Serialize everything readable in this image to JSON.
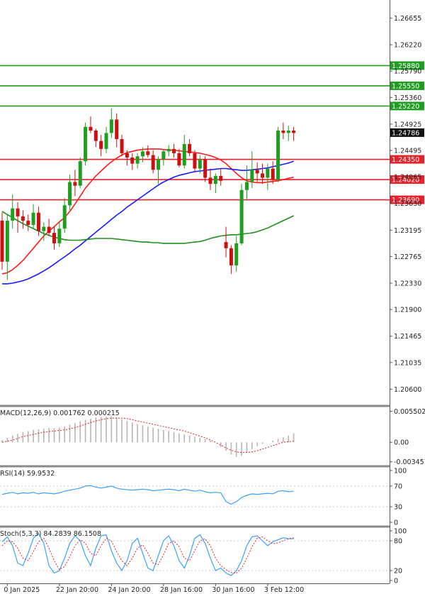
{
  "chart_data": {
    "type": "candlestick",
    "price_axis": {
      "range": [
        1.2035,
        1.2695
      ],
      "ticks": [
        "1.26655",
        "1.26220",
        "1.25790",
        "1.25360",
        "1.24925",
        "1.24495",
        "1.24065",
        "1.23630",
        "1.23195",
        "1.22765",
        "1.22330",
        "1.21900",
        "1.21465",
        "1.21035",
        "1.20600"
      ]
    },
    "current_price": "1.24786",
    "levels": [
      {
        "label": "1.25880",
        "value": 1.2588,
        "color": "#1f9e1f"
      },
      {
        "label": "1.25550",
        "value": 1.2555,
        "color": "#1f9e1f"
      },
      {
        "label": "1.25220",
        "value": 1.2522,
        "color": "#1f9e1f"
      },
      {
        "label": "1.24350",
        "value": 1.2435,
        "color": "#e8202a"
      },
      {
        "label": "1.24020",
        "value": 1.2402,
        "color": "#e8202a"
      },
      {
        "label": "1.23690",
        "value": 1.2369,
        "color": "#e8202a"
      }
    ],
    "x_labels": [
      {
        "label": "0 Jan 2025",
        "i": 1
      },
      {
        "label": "22 Jan 20:00",
        "i": 11
      },
      {
        "label": "24 Jan 20:00",
        "i": 21
      },
      {
        "label": "28 Jan 16:00",
        "i": 31
      },
      {
        "label": "30 Jan 16:00",
        "i": 41
      },
      {
        "label": "3 Feb 12:00",
        "i": 51
      }
    ],
    "candles": [
      [
        1.2335,
        1.2348,
        1.2255,
        1.2268
      ],
      [
        1.2268,
        1.2345,
        1.2238,
        1.2335
      ],
      [
        1.2335,
        1.2378,
        1.2322,
        1.2355
      ],
      [
        1.2355,
        1.2365,
        1.2315,
        1.2342
      ],
      [
        1.2342,
        1.2352,
        1.2322,
        1.2335
      ],
      [
        1.2335,
        1.2345,
        1.2318,
        1.2328
      ],
      [
        1.2328,
        1.2362,
        1.2322,
        1.2348
      ],
      [
        1.2348,
        1.2358,
        1.231,
        1.2318
      ],
      [
        1.2318,
        1.2332,
        1.2302,
        1.2325
      ],
      [
        1.2325,
        1.2338,
        1.231,
        1.2315
      ],
      [
        1.2315,
        1.2325,
        1.2288,
        1.2298
      ],
      [
        1.2298,
        1.2332,
        1.2292,
        1.2322
      ],
      [
        1.2322,
        1.2372,
        1.2315,
        1.236
      ],
      [
        1.236,
        1.241,
        1.2352,
        1.2398
      ],
      [
        1.2398,
        1.2418,
        1.2375,
        1.2392
      ],
      [
        1.2392,
        1.2438,
        1.2388,
        1.2432
      ],
      [
        1.2432,
        1.2495,
        1.2425,
        1.2488
      ],
      [
        1.2488,
        1.2505,
        1.2478,
        1.2482
      ],
      [
        1.2482,
        1.2485,
        1.2455,
        1.2465
      ],
      [
        1.2465,
        1.2475,
        1.244,
        1.2452
      ],
      [
        1.2452,
        1.2488,
        1.2445,
        1.2478
      ],
      [
        1.2478,
        1.2518,
        1.247,
        1.25
      ],
      [
        1.25,
        1.251,
        1.2455,
        1.2468
      ],
      [
        1.2468,
        1.2475,
        1.244,
        1.2445
      ],
      [
        1.2445,
        1.245,
        1.2425,
        1.2438
      ],
      [
        1.2438,
        1.2445,
        1.2418,
        1.2428
      ],
      [
        1.2428,
        1.2445,
        1.242,
        1.244
      ],
      [
        1.244,
        1.2455,
        1.243,
        1.2448
      ],
      [
        1.2448,
        1.2458,
        1.2438,
        1.2442
      ],
      [
        1.2442,
        1.245,
        1.2412,
        1.2418
      ],
      [
        1.2418,
        1.244,
        1.2395,
        1.2435
      ],
      [
        1.2435,
        1.2452,
        1.2425,
        1.2448
      ],
      [
        1.2448,
        1.2458,
        1.244,
        1.2452
      ],
      [
        1.2452,
        1.246,
        1.2438,
        1.2445
      ],
      [
        1.2445,
        1.2452,
        1.2422,
        1.2425
      ],
      [
        1.2425,
        1.2475,
        1.242,
        1.246
      ],
      [
        1.246,
        1.2468,
        1.244,
        1.2445
      ],
      [
        1.2445,
        1.245,
        1.2415,
        1.242
      ],
      [
        1.242,
        1.2442,
        1.2412,
        1.2435
      ],
      [
        1.2435,
        1.244,
        1.2398,
        1.2405
      ],
      [
        1.2405,
        1.242,
        1.2385,
        1.2395
      ],
      [
        1.2395,
        1.2412,
        1.238,
        1.2408
      ],
      [
        1.2408,
        1.242,
        1.2392,
        1.24
      ],
      [
        1.23,
        1.2325,
        1.2275,
        1.229
      ],
      [
        1.229,
        1.2295,
        1.2248,
        1.2262
      ],
      [
        1.2262,
        1.231,
        1.2252,
        1.2298
      ],
      [
        1.2298,
        1.2395,
        1.2295,
        1.2385
      ],
      [
        1.2385,
        1.2425,
        1.237,
        1.2398
      ],
      [
        1.2398,
        1.2448,
        1.2388,
        1.2418
      ],
      [
        1.2418,
        1.243,
        1.2398,
        1.2412
      ],
      [
        1.2412,
        1.2428,
        1.2395,
        1.2405
      ],
      [
        1.2405,
        1.2428,
        1.2385,
        1.242
      ],
      [
        1.242,
        1.2432,
        1.2395,
        1.2402
      ],
      [
        1.2402,
        1.2488,
        1.2398,
        1.2482
      ],
      [
        1.2482,
        1.2495,
        1.2468,
        1.2478
      ],
      [
        1.2478,
        1.249,
        1.2465,
        1.2482
      ],
      [
        1.2482,
        1.2488,
        1.2465,
        1.2478
      ]
    ],
    "moving_averages": [
      {
        "color": "#ff1a1a",
        "values": [
          1.2248,
          1.225,
          1.2255,
          1.2262,
          1.227,
          1.228,
          1.229,
          1.23,
          1.231,
          1.2318,
          1.2325,
          1.2333,
          1.234,
          1.235,
          1.2362,
          1.2375,
          1.2388,
          1.2398,
          1.2408,
          1.2416,
          1.2424,
          1.2431,
          1.2437,
          1.2442,
          1.2446,
          1.2448,
          1.245,
          1.2451,
          1.2452,
          1.2452,
          1.2452,
          1.2451,
          1.245,
          1.245,
          1.2449,
          1.2448,
          1.2447,
          1.2446,
          1.2445,
          1.2443,
          1.2441,
          1.2438,
          1.2434,
          1.2428,
          1.242,
          1.2412,
          1.2405,
          1.24,
          1.2398,
          1.2397,
          1.2397,
          1.2398,
          1.2399,
          1.24,
          1.2402,
          1.2404,
          1.2406
        ]
      },
      {
        "color": "#1a1aff",
        "values": [
          1.2232,
          1.2232,
          1.2233,
          1.2235,
          1.2237,
          1.224,
          1.2244,
          1.2248,
          1.2253,
          1.2258,
          1.2264,
          1.227,
          1.2276,
          1.2282,
          1.2289,
          1.2295,
          1.2302,
          1.2309,
          1.2316,
          1.2323,
          1.233,
          1.2337,
          1.2344,
          1.235,
          1.2357,
          1.2363,
          1.2369,
          1.2375,
          1.2381,
          1.2387,
          1.2393,
          1.2398,
          1.2402,
          1.2406,
          1.2409,
          1.2411,
          1.2413,
          1.2415,
          1.2416,
          1.2417,
          1.2418,
          1.2419,
          1.242,
          1.242,
          1.2419,
          1.2418,
          1.2417,
          1.2417,
          1.2418,
          1.2419,
          1.242,
          1.2421,
          1.2423,
          1.2425,
          1.2427,
          1.2429,
          1.2432
        ]
      },
      {
        "color": "#1f8f1f",
        "values": [
          1.235,
          1.2345,
          1.234,
          1.2335,
          1.233,
          1.2326,
          1.2322,
          1.2318,
          1.2314,
          1.2311,
          1.2308,
          1.2306,
          1.2304,
          1.2303,
          1.2303,
          1.2303,
          1.2304,
          1.2305,
          1.2306,
          1.2306,
          1.2306,
          1.2306,
          1.2305,
          1.2304,
          1.2303,
          1.2302,
          1.2301,
          1.23,
          1.23,
          1.2299,
          1.2299,
          1.2298,
          1.2298,
          1.2298,
          1.2298,
          1.2298,
          1.2299,
          1.23,
          1.2301,
          1.2303,
          1.2306,
          1.2308,
          1.231,
          1.2311,
          1.2312,
          1.2312,
          1.2313,
          1.2314,
          1.2315,
          1.2317,
          1.232,
          1.2323,
          1.2327,
          1.2331,
          1.2335,
          1.2339,
          1.2343
        ]
      }
    ],
    "macd": {
      "label": "MACD(12,26,9) 0.001762 0.000215",
      "ticks": [
        "0.005502",
        "0.00",
        "-0.003457"
      ],
      "range": [
        -0.004,
        0.0062
      ],
      "hist": [
        0.0004,
        0.0008,
        0.0012,
        0.0015,
        0.0018,
        0.002,
        0.0022,
        0.0023,
        0.0024,
        0.0025,
        0.0025,
        0.0026,
        0.0028,
        0.0031,
        0.0034,
        0.0037,
        0.004,
        0.0042,
        0.0044,
        0.0045,
        0.0046,
        0.0046,
        0.0044,
        0.0041,
        0.0038,
        0.0035,
        0.0032,
        0.003,
        0.0028,
        0.0026,
        0.0024,
        0.0022,
        0.002,
        0.0018,
        0.0016,
        0.0014,
        0.0012,
        0.001,
        0.0008,
        0.0006,
        0.0003,
        0.0,
        -0.0008,
        -0.0015,
        -0.0022,
        -0.0026,
        -0.0024,
        -0.0018,
        -0.0012,
        -0.0007,
        -0.0003,
        0.0,
        0.0003,
        0.0006,
        0.0009,
        0.0012,
        0.0016
      ],
      "signal": [
        0.0,
        0.0002,
        0.0004,
        0.0007,
        0.001,
        0.0012,
        0.0014,
        0.0016,
        0.0018,
        0.0019,
        0.002,
        0.0021,
        0.0022,
        0.0024,
        0.0026,
        0.0029,
        0.0032,
        0.0035,
        0.0038,
        0.004,
        0.0042,
        0.0043,
        0.0043,
        0.0043,
        0.0042,
        0.004,
        0.0038,
        0.0036,
        0.0034,
        0.0032,
        0.003,
        0.0028,
        0.0026,
        0.0024,
        0.0022,
        0.002,
        0.0017,
        0.0014,
        0.0011,
        0.0008,
        0.0004,
        0.0,
        -0.0005,
        -0.001,
        -0.0014,
        -0.0017,
        -0.0018,
        -0.0018,
        -0.0017,
        -0.0015,
        -0.0012,
        -0.0009,
        -0.0006,
        -0.0003,
        0.0,
        0.0001,
        0.0002
      ]
    },
    "rsi": {
      "label": "RSI(14) 59.9532",
      "ticks": [
        100,
        70,
        30,
        0
      ],
      "values": [
        54,
        56,
        58,
        55,
        57,
        56,
        58,
        55,
        57,
        56,
        55,
        57,
        60,
        62,
        64,
        66,
        70,
        71,
        68,
        66,
        68,
        70,
        66,
        64,
        63,
        62,
        63,
        64,
        63,
        61,
        62,
        63,
        64,
        63,
        61,
        64,
        62,
        60,
        62,
        59,
        57,
        58,
        57,
        40,
        35,
        40,
        48,
        52,
        55,
        54,
        55,
        56,
        55,
        60,
        61,
        59,
        60
      ]
    },
    "stoch": {
      "label": "Stoch(5,3,3) 84.2839 86.1508",
      "ticks": [
        100,
        80,
        20,
        0
      ],
      "k": [
        78,
        88,
        70,
        35,
        30,
        55,
        85,
        95,
        75,
        30,
        15,
        20,
        45,
        75,
        90,
        80,
        50,
        30,
        65,
        90,
        92,
        60,
        35,
        20,
        40,
        75,
        85,
        55,
        25,
        20,
        50,
        80,
        90,
        70,
        40,
        25,
        50,
        85,
        92,
        75,
        45,
        20,
        25,
        15,
        10,
        20,
        40,
        70,
        88,
        90,
        80,
        70,
        78,
        82,
        86,
        84,
        84
      ],
      "d": [
        70,
        80,
        78,
        65,
        45,
        40,
        58,
        78,
        85,
        65,
        40,
        22,
        28,
        48,
        70,
        82,
        75,
        55,
        50,
        70,
        85,
        80,
        58,
        40,
        30,
        45,
        65,
        72,
        55,
        35,
        32,
        52,
        75,
        80,
        68,
        45,
        40,
        60,
        80,
        84,
        70,
        45,
        30,
        22,
        16,
        15,
        25,
        45,
        68,
        85,
        88,
        80,
        74,
        76,
        80,
        84,
        86
      ]
    }
  }
}
